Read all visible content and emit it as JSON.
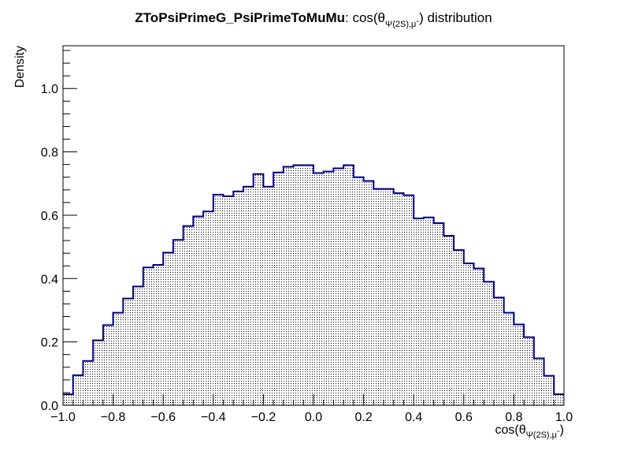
{
  "chart_data": {
    "type": "histogram",
    "title_bold": "ZToPsiPrimeG_PsiPrimeToMuMu",
    "title_rest": ": cos(θ",
    "title_sub": "Ψ(2S),μ",
    "title_sup": "-",
    "title_end": ") distribution",
    "xlabel": "cos(θ",
    "xlabel_sub": "Ψ(2S),μ",
    "xlabel_sup": "-",
    "xlabel_end": ")",
    "ylabel": "Density",
    "xlim": [
      -1.0,
      1.0
    ],
    "ylim": [
      0.0,
      1.135
    ],
    "x_ticks": [
      "−1.0",
      "−0.8",
      "−0.6",
      "−0.4",
      "−0.2",
      "0.0",
      "0.2",
      "0.4",
      "0.6",
      "0.8",
      "1.0"
    ],
    "y_ticks": [
      "0.0",
      "0.2",
      "0.4",
      "0.6",
      "0.8",
      "1.0"
    ],
    "line_color": "#000080",
    "fill_pattern": "dotted",
    "bin_edges_start": -1.0,
    "bin_width": 0.04,
    "values": [
      0.035,
      0.095,
      0.14,
      0.205,
      0.253,
      0.292,
      0.337,
      0.375,
      0.435,
      0.443,
      0.482,
      0.522,
      0.566,
      0.596,
      0.612,
      0.665,
      0.66,
      0.675,
      0.69,
      0.73,
      0.69,
      0.735,
      0.753,
      0.758,
      0.758,
      0.733,
      0.738,
      0.748,
      0.758,
      0.72,
      0.708,
      0.683,
      0.683,
      0.67,
      0.663,
      0.59,
      0.593,
      0.575,
      0.535,
      0.49,
      0.448,
      0.432,
      0.39,
      0.34,
      0.292,
      0.255,
      0.215,
      0.148,
      0.093,
      0.035
    ]
  }
}
